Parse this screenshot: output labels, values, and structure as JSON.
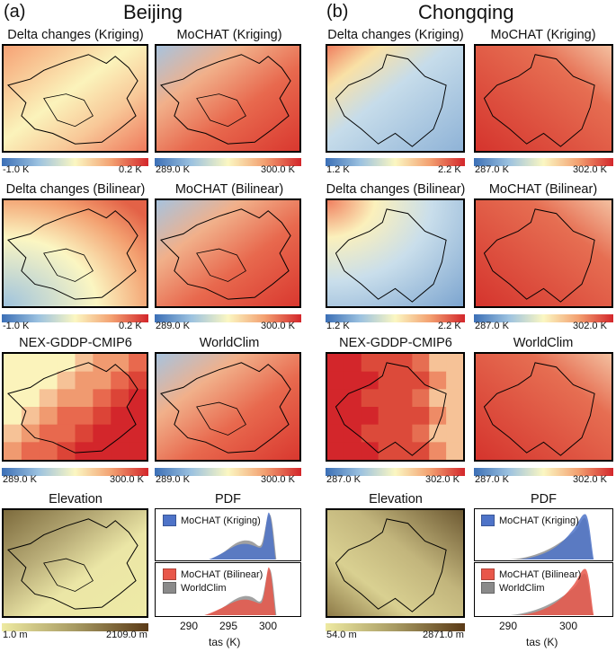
{
  "panels": {
    "a": {
      "label": "(a)",
      "region": "Beijing",
      "maps": {
        "delta_kriging": {
          "title": "Delta changes (Kriging)",
          "min": "-1.0 K",
          "max": "0.2 K"
        },
        "mochat_kriging": {
          "title": "MoCHAT (Kriging)",
          "min": "289.0 K",
          "max": "300.0 K"
        },
        "delta_bilinear": {
          "title": "Delta changes (Bilinear)",
          "min": "-1.0 K",
          "max": "0.2 K"
        },
        "mochat_bilinear": {
          "title": "MoCHAT (Bilinear)",
          "min": "289.0 K",
          "max": "300.0 K"
        },
        "nex": {
          "title": "NEX-GDDP-CMIP6",
          "min": "289.0 K",
          "max": "300.0 K"
        },
        "worldclim": {
          "title": "WorldClim",
          "min": "289.0 K",
          "max": "300.0 K"
        },
        "elevation": {
          "title": "Elevation",
          "min": "1.0 m",
          "max": "2109.0 m"
        }
      },
      "pdf": {
        "title": "PDF",
        "legend_top": [
          "MoCHAT (Kriging)"
        ],
        "legend_bottom": [
          "MoCHAT (Bilinear)",
          "WorldClim"
        ],
        "xticks": [
          "290",
          "295",
          "300"
        ],
        "xlabel": "tas (K)"
      }
    },
    "b": {
      "label": "(b)",
      "region": "Chongqing",
      "maps": {
        "delta_kriging": {
          "title": "Delta changes (Kriging)",
          "min": "1.2 K",
          "max": "2.2 K"
        },
        "mochat_kriging": {
          "title": "MoCHAT (Kriging)",
          "min": "287.0 K",
          "max": "302.0 K"
        },
        "delta_bilinear": {
          "title": "Delta changes (Bilinear)",
          "min": "1.2 K",
          "max": "2.2 K"
        },
        "mochat_bilinear": {
          "title": "MoCHAT (Bilinear)",
          "min": "287.0 K",
          "max": "302.0 K"
        },
        "nex": {
          "title": "NEX-GDDP-CMIP6",
          "min": "287.0 K",
          "max": "302.0 K"
        },
        "worldclim": {
          "title": "WorldClim",
          "min": "287.0 K",
          "max": "302.0 K"
        },
        "elevation": {
          "title": "Elevation",
          "min": "54.0 m",
          "max": "2871.0 m"
        }
      },
      "pdf": {
        "title": "PDF",
        "legend_top": [
          "MoCHAT (Kriging)"
        ],
        "legend_bottom": [
          "MoCHAT (Bilinear)",
          "WorldClim"
        ],
        "xticks": [
          "290",
          "300"
        ],
        "xlabel": "tas (K)"
      }
    }
  },
  "colors": {
    "kriging": "#4e73c8",
    "bilinear": "#e8574a",
    "worldclim": "#8a8a8a"
  }
}
